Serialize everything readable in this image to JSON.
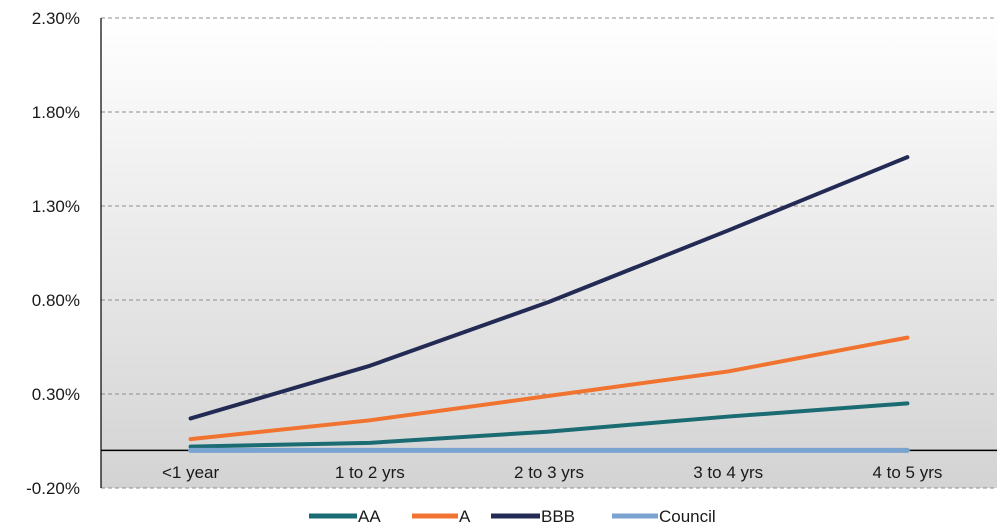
{
  "chart_data": {
    "type": "line",
    "title": "",
    "xlabel": "",
    "ylabel": "",
    "categories": [
      "<1 year",
      "1 to 2 yrs",
      "2 to 3 yrs",
      "3 to 4 yrs",
      "4 to 5 yrs"
    ],
    "ylim": [
      -0.2,
      2.3
    ],
    "y_ticks": [
      -0.2,
      0.3,
      0.8,
      1.3,
      1.8,
      2.3
    ],
    "y_tick_labels": [
      "-0.20%",
      "0.30%",
      "0.80%",
      "1.30%",
      "1.80%",
      "2.30%"
    ],
    "grid": true,
    "legend_position": "bottom",
    "background": "gradient-grey-to-white",
    "series": [
      {
        "name": "AA",
        "color": "#1b6b72",
        "values": [
          0.02,
          0.04,
          0.1,
          0.18,
          0.25
        ]
      },
      {
        "name": "A",
        "color": "#f07430",
        "values": [
          0.06,
          0.16,
          0.29,
          0.42,
          0.6
        ]
      },
      {
        "name": "BBB",
        "color": "#232b55",
        "values": [
          0.17,
          0.45,
          0.79,
          1.17,
          1.56
        ]
      },
      {
        "name": "Council",
        "color": "#7aa3cf",
        "values": [
          0.0,
          0.0,
          0.0,
          0.0,
          0.0
        ]
      }
    ]
  }
}
